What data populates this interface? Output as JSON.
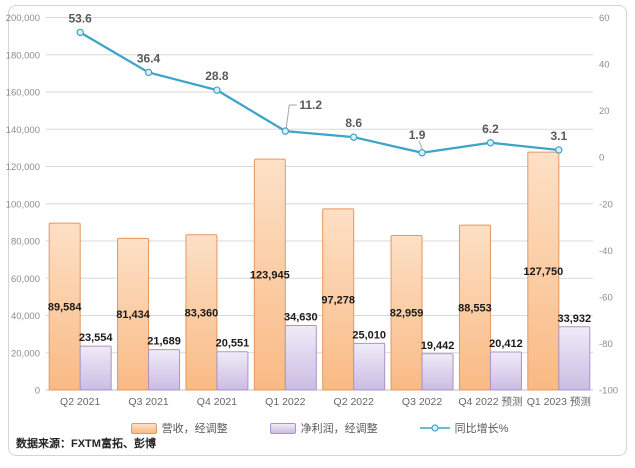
{
  "source_note": "数据来源：FXTM富拓、彭博",
  "chart_data": {
    "type": "combo-bar-line",
    "title": "",
    "categories": [
      "Q2 2021",
      "Q3 2021",
      "Q4 2021",
      "Q1 2022",
      "Q2 2022",
      "Q3 2022",
      "Q4 2022 预测",
      "Q1 2023 预测"
    ],
    "series": [
      {
        "name": "营收，经调整",
        "type": "bar",
        "axis": "left",
        "values": [
          89584,
          81434,
          83360,
          123945,
          97278,
          82959,
          88553,
          127750
        ],
        "labels": [
          "89,584",
          "81,434",
          "83,360",
          "123,945",
          "97,278",
          "82,959",
          "88,553",
          "127,750"
        ]
      },
      {
        "name": "净利润，经调整",
        "type": "bar",
        "axis": "left",
        "values": [
          23554,
          21689,
          20551,
          34630,
          25010,
          19442,
          20412,
          33932
        ],
        "labels": [
          "23,554",
          "21,689",
          "20,551",
          "34,630",
          "25,010",
          "19,442",
          "20,412",
          "33,932"
        ]
      },
      {
        "name": "同比增长%",
        "type": "line",
        "axis": "right",
        "values": [
          53.6,
          36.4,
          28.8,
          11.2,
          8.6,
          1.9,
          6.2,
          3.1
        ],
        "labels": [
          "53.6",
          "36.4",
          "28.8",
          "11.2",
          "8.6",
          "1.9",
          "6.2",
          "3.1"
        ],
        "callout_indices": [
          3,
          5
        ]
      }
    ],
    "left_axis": {
      "min": 0,
      "max": 200000,
      "step": 20000,
      "tick_labels": [
        "200,000",
        "180,000",
        "160,000",
        "140,000",
        "120,000",
        "100,000",
        "80,000",
        "60,000",
        "40,000",
        "20,000",
        "0"
      ]
    },
    "right_axis": {
      "min": -100,
      "max": 60,
      "step": 20,
      "tick_labels": [
        "60",
        "40",
        "20",
        "0",
        "-20",
        "-40",
        "-60",
        "-80",
        "-100"
      ]
    },
    "grid": true,
    "legend_position": "bottom"
  },
  "colors": {
    "bar_revenue_fill_top": "#FDE0C6",
    "bar_revenue_fill_bottom": "#F9BA84",
    "bar_revenue_border": "#E6965F",
    "bar_profit_fill_top": "#F0EBF8",
    "bar_profit_fill_bottom": "#CBBCE3",
    "bar_profit_border": "#A795C7",
    "line": "#3DA5C8",
    "marker_fill": "#DDEEF5",
    "gridline": "#D9D9D9",
    "axis_line": "#BFBFBF",
    "axis_text": "#8C8C8C",
    "category_text": "#666666",
    "value_label_text": "#1A1A1A",
    "line_label_text": "#595959",
    "leader_line": "#A6A6A6"
  }
}
